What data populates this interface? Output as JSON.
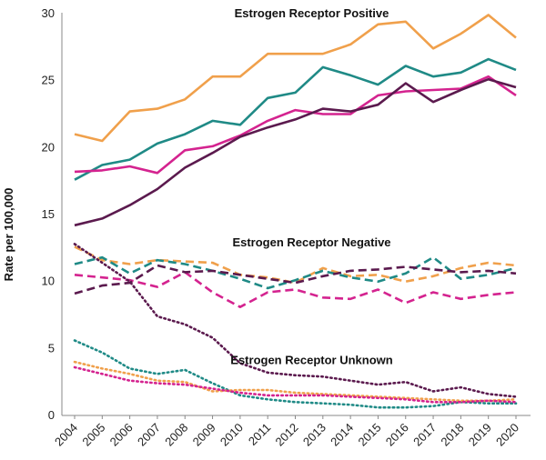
{
  "chart_data": {
    "type": "line",
    "title": "",
    "xlabel": "",
    "ylabel": "Rate per 100,000",
    "ylim": [
      0,
      30
    ],
    "yticks": [
      0,
      5,
      10,
      15,
      20,
      25,
      30
    ],
    "x": [
      2004,
      2005,
      2006,
      2007,
      2008,
      2009,
      2010,
      2011,
      2012,
      2013,
      2014,
      2015,
      2016,
      2017,
      2018,
      2019,
      2020
    ],
    "legend": "none",
    "group_labels": [
      {
        "text": "Estrogen Receptor Positive",
        "x": 2012.0,
        "y": 30.0
      },
      {
        "text": "Estrogen Receptor Negative",
        "x": 2012.0,
        "y": 12.9
      },
      {
        "text": "Estrogen Receptor Unknown",
        "x": 2012.0,
        "y": 4.1
      }
    ],
    "series": [
      {
        "name": "ER+ orange",
        "color": "#F0A04B",
        "style": "solid",
        "values": [
          21.0,
          20.5,
          22.7,
          22.9,
          23.6,
          25.3,
          25.3,
          27.0,
          27.0,
          27.0,
          27.7,
          29.2,
          29.4,
          27.4,
          28.5,
          29.9,
          28.2
        ]
      },
      {
        "name": "ER+ teal",
        "color": "#1F8A86",
        "style": "solid",
        "values": [
          17.6,
          18.7,
          19.1,
          20.3,
          21.0,
          22.0,
          21.7,
          23.7,
          24.1,
          26.0,
          25.4,
          24.7,
          26.1,
          25.3,
          25.6,
          26.6,
          25.8
        ]
      },
      {
        "name": "ER+ magenta",
        "color": "#D4238F",
        "style": "solid",
        "values": [
          18.2,
          18.3,
          18.6,
          18.1,
          19.8,
          20.1,
          20.9,
          22.0,
          22.8,
          22.5,
          22.5,
          23.9,
          24.2,
          24.3,
          24.4,
          25.3,
          23.9
        ]
      },
      {
        "name": "ER+ plum",
        "color": "#5B1A4E",
        "style": "solid",
        "values": [
          14.2,
          14.7,
          15.7,
          16.9,
          18.5,
          19.6,
          20.8,
          21.5,
          22.1,
          22.9,
          22.7,
          23.2,
          24.8,
          23.4,
          24.3,
          25.1,
          24.5
        ]
      },
      {
        "name": "ER- orange",
        "color": "#F0A04B",
        "style": "dashed",
        "values": [
          12.6,
          11.6,
          11.3,
          11.6,
          11.5,
          11.4,
          10.5,
          10.3,
          9.9,
          11.0,
          10.4,
          10.5,
          10.0,
          10.4,
          11.0,
          11.4,
          11.2
        ]
      },
      {
        "name": "ER- teal",
        "color": "#1F8A86",
        "style": "dashed",
        "values": [
          11.3,
          11.8,
          10.6,
          11.6,
          11.3,
          10.8,
          10.2,
          9.5,
          10.1,
          10.8,
          10.3,
          10.0,
          10.6,
          11.8,
          10.2,
          10.5,
          11.0
        ]
      },
      {
        "name": "ER- magenta",
        "color": "#D4238F",
        "style": "dashed",
        "values": [
          10.5,
          10.3,
          10.1,
          9.6,
          10.7,
          9.2,
          8.1,
          9.2,
          9.4,
          8.8,
          8.7,
          9.4,
          8.4,
          9.2,
          8.7,
          9.0,
          9.2
        ]
      },
      {
        "name": "ER- plum",
        "color": "#5B1A4E",
        "style": "dashed",
        "values": [
          9.1,
          9.7,
          9.9,
          11.2,
          10.7,
          10.8,
          10.5,
          10.2,
          9.9,
          10.4,
          10.8,
          10.9,
          11.1,
          10.9,
          10.7,
          10.8,
          10.6
        ]
      },
      {
        "name": "Unknown plum",
        "color": "#5B1A4E",
        "style": "dotted",
        "values": [
          12.8,
          11.4,
          10.0,
          7.4,
          6.8,
          5.8,
          3.9,
          3.2,
          3.0,
          2.9,
          2.6,
          2.3,
          2.5,
          1.8,
          2.1,
          1.6,
          1.4
        ]
      },
      {
        "name": "Unknown teal",
        "color": "#1F8A86",
        "style": "dotted",
        "values": [
          5.6,
          4.7,
          3.5,
          3.1,
          3.4,
          2.4,
          1.5,
          1.2,
          1.0,
          0.9,
          0.8,
          0.6,
          0.6,
          0.7,
          1.0,
          0.9,
          0.9
        ]
      },
      {
        "name": "Unknown orange",
        "color": "#F0A04B",
        "style": "dotted",
        "values": [
          4.0,
          3.5,
          3.1,
          2.6,
          2.5,
          1.8,
          1.9,
          1.9,
          1.7,
          1.6,
          1.5,
          1.4,
          1.3,
          1.2,
          1.1,
          1.1,
          1.2
        ]
      },
      {
        "name": "Unknown magenta",
        "color": "#D4238F",
        "style": "dotted",
        "values": [
          3.6,
          3.1,
          2.6,
          2.4,
          2.3,
          2.0,
          1.7,
          1.5,
          1.5,
          1.5,
          1.4,
          1.3,
          1.2,
          1.0,
          1.0,
          1.1,
          1.0
        ]
      }
    ]
  }
}
